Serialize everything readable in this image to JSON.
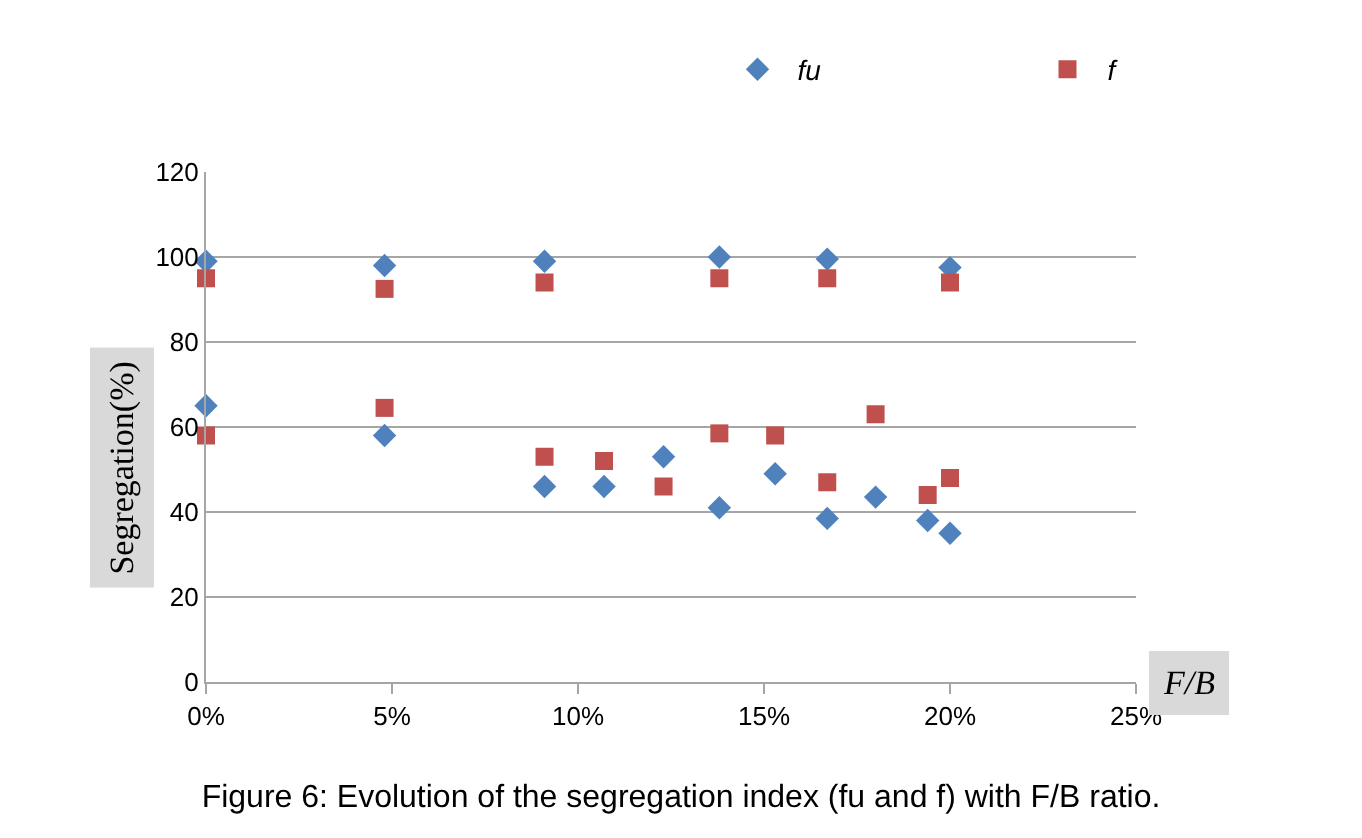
{
  "chart_data": {
    "type": "scatter",
    "title": "Figure 6: Evolution of the segregation index (fu and f) with F/B ratio.",
    "xlabel": "F/B",
    "ylabel": "Segregation(%)",
    "series": [
      {
        "name": "fu",
        "color": "#4f81bd",
        "marker": "diamond",
        "x": [
          0,
          0,
          4.8,
          4.8,
          9.1,
          9.1,
          10.7,
          12.3,
          13.8,
          13.8,
          15.3,
          16.7,
          16.7,
          18.0,
          19.4,
          20,
          20
        ],
        "values": [
          99,
          65,
          98,
          58,
          99,
          46,
          46,
          53,
          100,
          41,
          49,
          99.5,
          38.5,
          43.5,
          38,
          97.5,
          35
        ]
      },
      {
        "name": "f",
        "color": "#c0504d",
        "marker": "square",
        "x": [
          0,
          0,
          4.8,
          4.8,
          9.1,
          9.1,
          10.7,
          12.3,
          13.8,
          13.8,
          15.3,
          16.7,
          16.7,
          18.0,
          19.4,
          20,
          20
        ],
        "values": [
          95,
          58,
          92.5,
          64.5,
          94,
          53,
          52,
          46,
          95,
          58.5,
          58,
          95,
          47,
          63,
          44,
          94,
          48
        ]
      }
    ],
    "xlim": [
      0,
      25
    ],
    "xticks": [
      {
        "value": 0,
        "label": "0%"
      },
      {
        "value": 5,
        "label": "5%"
      },
      {
        "value": 10,
        "label": "10%"
      },
      {
        "value": 15,
        "label": "15%"
      },
      {
        "value": 20,
        "label": "20%"
      },
      {
        "value": 25,
        "label": "25%"
      }
    ],
    "ylim": [
      0,
      120
    ],
    "yticks": [
      0,
      20,
      40,
      60,
      80,
      100,
      120
    ],
    "grid": "y",
    "legend": "top"
  }
}
